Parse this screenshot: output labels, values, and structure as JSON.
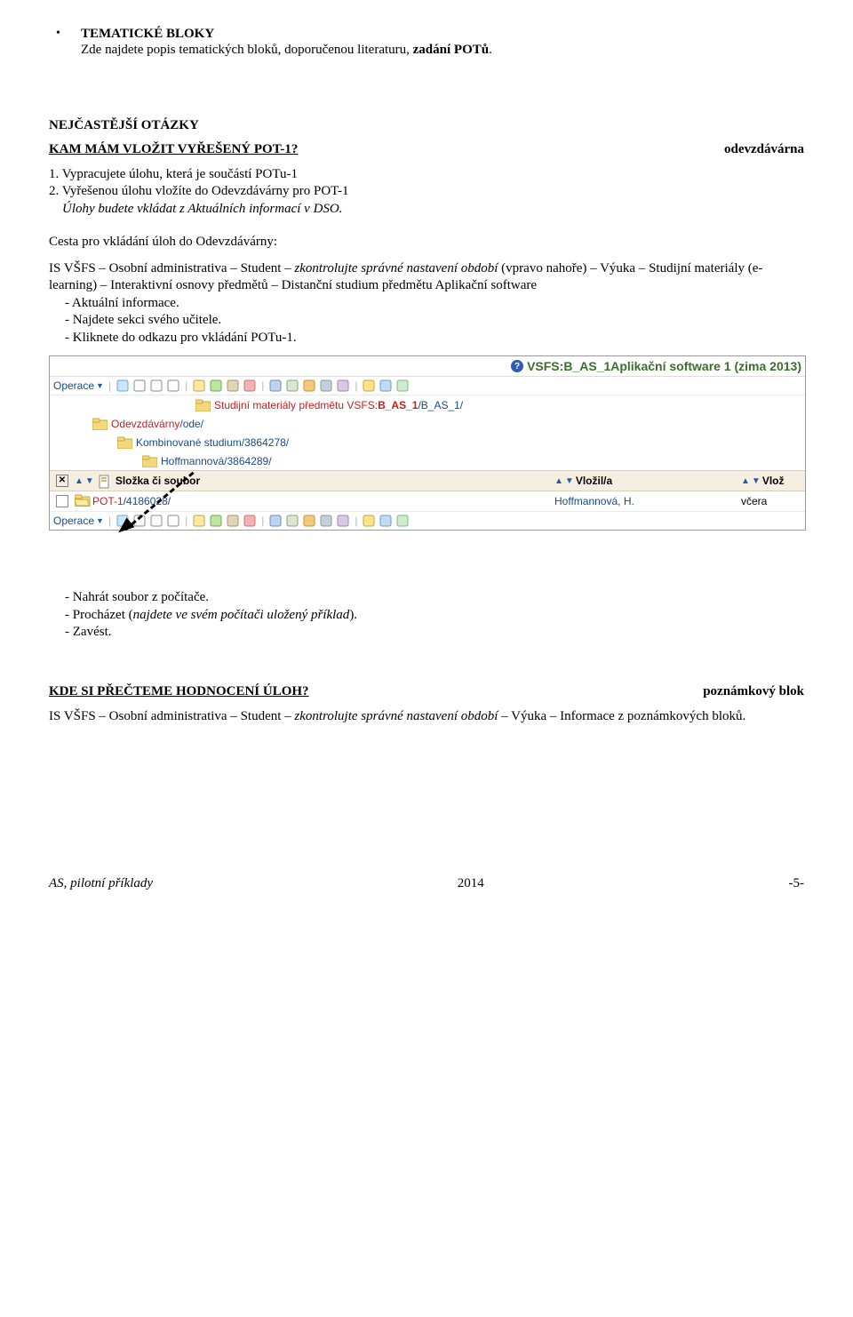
{
  "doc": {
    "bullet_glyph": "•",
    "heading1": "TEMATICKÉ BLOKY",
    "line1a": "Zde najdete popis tematických bloků, doporučenou literaturu, ",
    "line1b_bold": "zadání POTů",
    "line1c": ".",
    "faq": "NEJČASTĚJŠÍ OTÁZKY",
    "q1": "KAM MÁM VLOŽIT VYŘEŠENÝ POT-1?",
    "q1_right": "odevzdávárna",
    "step1": "1. Vypracujete úlohu, která je součástí POTu-1",
    "step2": "2. Vyřešenou úlohu vložíte do Odevzdávárny pro POT-1",
    "step2b_italic": "Úlohy budete vkládat z Aktuálních informací v DSO.",
    "cesta": "Cesta pro vkládání úloh do Odevzdávárny:",
    "path_a": "IS VŠFS – Osobní administrativa – Student – ",
    "path_b_italic": "zkontrolujte správné nastavení období ",
    "path_c": "(vpravo nahoře) – Výuka – Studijní materiály (e-learning) – Interaktivní osnovy předmětů – Distanční studium předmětu Aplikační software",
    "bulleted": [
      "Aktuální informace.",
      "Najdete sekci svého učitele.",
      "Kliknete do odkazu pro vkládání POTu-1."
    ],
    "after_shot": [
      "Nahrát soubor z počítače.",
      "Zavést."
    ],
    "after_shot_mid_a": "Procházet (",
    "after_shot_mid_b_italic": "najdete ve svém počítači uložený příklad",
    "after_shot_mid_c": ").",
    "q2": "KDE SI PŘEČTEME HODNOCENÍ ÚLOH?",
    "q2_right": "poznámkový blok",
    "final_a": "IS VŠFS – Osobní administrativa – Student – ",
    "final_b_italic": "zkontrolujte správné nastavení období",
    "final_c": " – Výuka – Informace z poznámkových bloků.",
    "footer_left": "AS, pilotní příklady",
    "footer_mid": "2014",
    "footer_right": "-5-"
  },
  "shot": {
    "title_a": "VSFS:",
    "title_bold": "B_AS_1",
    "title_b": " Aplikační software 1 (zima 2013)",
    "operace": "Operace",
    "tree": {
      "t1_a": "Studijní materiály předmětu VSFS:",
      "t1_bold": "B_AS_1",
      "t1_b": " /B_AS_1/",
      "t2_a": "Odevzdávárny",
      "t2_b": " /ode/",
      "t3_a": "Kombinované studium",
      "t3_b": " /3864278/",
      "t4_a": "Hoffmannová",
      "t4_b": " /3864289/",
      "file_a": "POT-1",
      "file_b": " /4186028/",
      "file_user": "Hoffmannová, H.",
      "file_when": "včera"
    },
    "header": {
      "col2": "Složka či soubor",
      "col3": "Vložil/a",
      "col4": "Vlož"
    },
    "colors": {
      "green": "#3c6e2f",
      "red": "#c81e1e",
      "blue": "#1a4a8a",
      "toolbar_border": "#d7e4cf",
      "header_bg": "#f6efe1"
    },
    "toolbar_icons": [
      {
        "fill": "#cbe7ff",
        "stroke": "#6aa3dd"
      },
      {
        "fill": "#fff",
        "stroke": "#888"
      },
      {
        "fill": "#fff",
        "stroke": "#888"
      },
      {
        "fill": "#fff",
        "stroke": "#888"
      },
      {
        "fill": "#ffeaa4",
        "stroke": "#bfa546"
      },
      {
        "fill": "#bfe6a0",
        "stroke": "#6aa756"
      },
      {
        "fill": "#e0d5b6",
        "stroke": "#a89567"
      },
      {
        "fill": "#f0b3b3",
        "stroke": "#cc7676"
      },
      {
        "fill": "#bcd4ef",
        "stroke": "#6a8dbd"
      },
      {
        "fill": "#dbe6d3",
        "stroke": "#8aa47c"
      },
      {
        "fill": "#f5c97b",
        "stroke": "#c79536"
      },
      {
        "fill": "#c6cfd7",
        "stroke": "#8997a3"
      },
      {
        "fill": "#d8c8e2",
        "stroke": "#a183b6"
      },
      {
        "fill": "#ffe28a",
        "stroke": "#caa23a"
      },
      {
        "fill": "#c0dcf3",
        "stroke": "#6a9bc9"
      },
      {
        "fill": "#d0ead0",
        "stroke": "#7eb87e"
      }
    ]
  }
}
